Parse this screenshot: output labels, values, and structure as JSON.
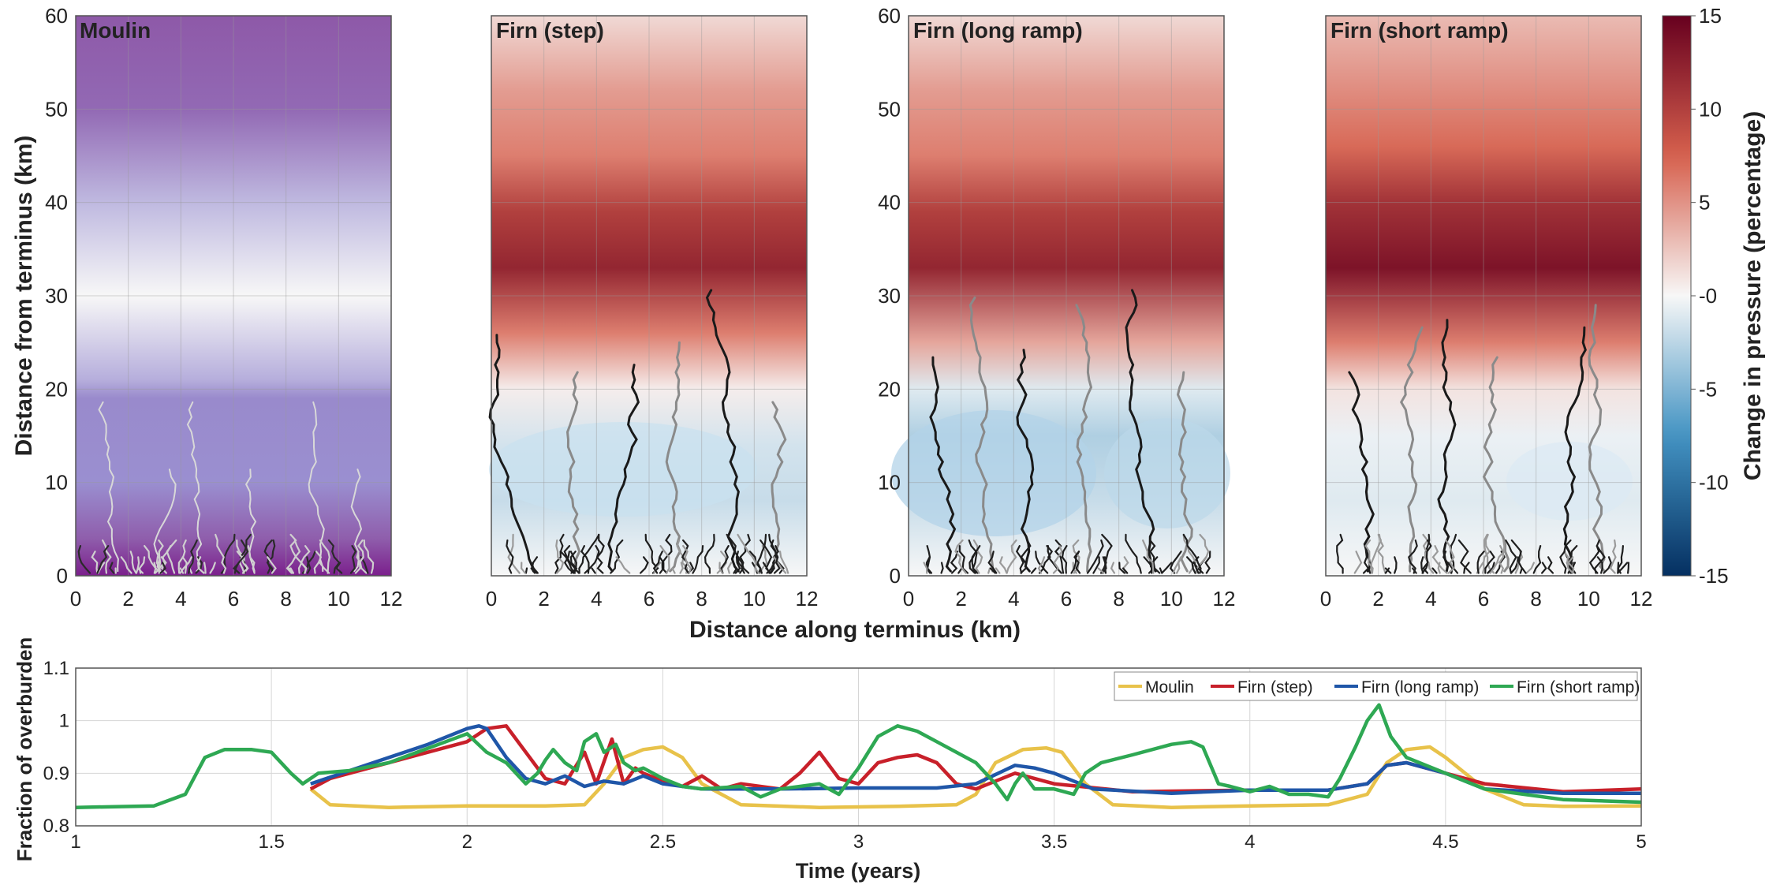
{
  "chart_data": [
    {
      "type": "heatmap",
      "title": "Moulin",
      "colormap": "purple-blue",
      "xlim": [
        0,
        12
      ],
      "ylim": [
        0,
        60
      ],
      "xticks": [
        "0",
        "2",
        "4",
        "6",
        "8",
        "10",
        "12"
      ],
      "yticks": [
        "0",
        "10",
        "20",
        "30",
        "40",
        "50",
        "60"
      ],
      "ylabel": "Distance from terminus (km)",
      "profile": [
        {
          "y": 0,
          "v": -1.0
        },
        {
          "y": 4,
          "v": -0.95
        },
        {
          "y": 10,
          "v": -0.5
        },
        {
          "y": 19,
          "v": -0.55
        },
        {
          "y": 21,
          "v": -0.35
        },
        {
          "y": 30,
          "v": 0.0
        },
        {
          "y": 40,
          "v": -0.3
        },
        {
          "y": 50,
          "v": -0.85
        },
        {
          "y": 60,
          "v": -1.0
        }
      ],
      "grid": true
    },
    {
      "type": "heatmap",
      "title": "Firn (step)",
      "xlim": [
        0,
        12
      ],
      "ylim": [
        0,
        60
      ],
      "xticks": [
        "0",
        "2",
        "4",
        "6",
        "8",
        "10",
        "12"
      ],
      "profile": [
        {
          "y": 0,
          "v": 0
        },
        {
          "y": 8,
          "v": -2
        },
        {
          "y": 14,
          "v": -1.5
        },
        {
          "y": 20,
          "v": 0.5
        },
        {
          "y": 26,
          "v": 6
        },
        {
          "y": 33,
          "v": 12
        },
        {
          "y": 39,
          "v": 10
        },
        {
          "y": 45,
          "v": 6
        },
        {
          "y": 52,
          "v": 4.5
        },
        {
          "y": 60,
          "v": 1.5
        }
      ],
      "grid": true
    },
    {
      "type": "heatmap",
      "title": "Firn (long ramp)",
      "xlim": [
        0,
        12
      ],
      "ylim": [
        0,
        60
      ],
      "xticks": [
        "0",
        "2",
        "4",
        "6",
        "8",
        "10",
        "12"
      ],
      "yticks": [
        "0",
        "10",
        "20",
        "30",
        "40",
        "50",
        "60"
      ],
      "profile": [
        {
          "y": 0,
          "v": 0
        },
        {
          "y": 8,
          "v": -2
        },
        {
          "y": 15,
          "v": -3
        },
        {
          "y": 20,
          "v": -1
        },
        {
          "y": 25,
          "v": 4
        },
        {
          "y": 33,
          "v": 12
        },
        {
          "y": 39,
          "v": 10
        },
        {
          "y": 45,
          "v": 6
        },
        {
          "y": 52,
          "v": 4.5
        },
        {
          "y": 60,
          "v": 1.5
        }
      ],
      "grid": true
    },
    {
      "type": "heatmap",
      "title": "Firn (short ramp)",
      "xlim": [
        0,
        12
      ],
      "ylim": [
        0,
        60
      ],
      "xticks": [
        "0",
        "2",
        "4",
        "6",
        "8",
        "10",
        "12"
      ],
      "profile": [
        {
          "y": 0,
          "v": 0
        },
        {
          "y": 8,
          "v": -1
        },
        {
          "y": 15,
          "v": -0.5
        },
        {
          "y": 20,
          "v": 1
        },
        {
          "y": 25,
          "v": 6
        },
        {
          "y": 33,
          "v": 13.5
        },
        {
          "y": 40,
          "v": 11
        },
        {
          "y": 46,
          "v": 7
        },
        {
          "y": 53,
          "v": 5
        },
        {
          "y": 60,
          "v": 3
        }
      ],
      "grid": true
    },
    {
      "type": "line",
      "xlabel": "Time (years)",
      "ylabel": "Fraction of overburden",
      "xlim": [
        1,
        5
      ],
      "ylim": [
        0.8,
        1.1
      ],
      "xticks": [
        "1",
        "1.5",
        "2",
        "2.5",
        "3",
        "3.5",
        "4",
        "4.5",
        "5"
      ],
      "yticks": [
        "0.8",
        "0.9",
        "1",
        "1.1"
      ],
      "legend": "top-right",
      "grid": true,
      "series": [
        {
          "name": "Moulin",
          "color": "#e8c24a",
          "x": [
            1.6,
            1.65,
            1.8,
            2.0,
            2.2,
            2.3,
            2.35,
            2.4,
            2.45,
            2.5,
            2.55,
            2.6,
            2.7,
            2.9,
            3.1,
            3.25,
            3.3,
            3.35,
            3.42,
            3.48,
            3.52,
            3.58,
            3.65,
            3.8,
            4.0,
            4.2,
            4.3,
            4.35,
            4.4,
            4.46,
            4.5,
            4.6,
            4.7,
            4.8,
            5.0
          ],
          "y": [
            0.87,
            0.84,
            0.835,
            0.838,
            0.838,
            0.84,
            0.88,
            0.93,
            0.945,
            0.95,
            0.93,
            0.88,
            0.84,
            0.835,
            0.837,
            0.84,
            0.86,
            0.92,
            0.945,
            0.948,
            0.94,
            0.88,
            0.84,
            0.835,
            0.838,
            0.84,
            0.86,
            0.92,
            0.945,
            0.95,
            0.93,
            0.87,
            0.84,
            0.837,
            0.838
          ]
        },
        {
          "name": "Firn (step)",
          "color": "#c8202a",
          "x": [
            1.6,
            1.65,
            1.8,
            2.0,
            2.05,
            2.1,
            2.15,
            2.2,
            2.25,
            2.3,
            2.33,
            2.37,
            2.4,
            2.43,
            2.45,
            2.5,
            2.55,
            2.6,
            2.65,
            2.7,
            2.8,
            2.85,
            2.9,
            2.95,
            3.0,
            3.05,
            3.1,
            3.15,
            3.2,
            3.25,
            3.3,
            3.4,
            3.5,
            3.7,
            4.0,
            4.2,
            4.3,
            4.35,
            4.4,
            4.45,
            4.5,
            4.6,
            4.8,
            5.0
          ],
          "y": [
            0.87,
            0.89,
            0.92,
            0.96,
            0.985,
            0.99,
            0.94,
            0.89,
            0.88,
            0.94,
            0.88,
            0.965,
            0.88,
            0.91,
            0.9,
            0.885,
            0.875,
            0.895,
            0.87,
            0.88,
            0.87,
            0.9,
            0.94,
            0.89,
            0.88,
            0.92,
            0.93,
            0.935,
            0.92,
            0.88,
            0.87,
            0.9,
            0.88,
            0.865,
            0.868,
            0.868,
            0.88,
            0.915,
            0.92,
            0.91,
            0.9,
            0.88,
            0.865,
            0.87
          ]
        },
        {
          "name": "Firn (long ramp)",
          "color": "#1f56a8",
          "x": [
            1.6,
            1.7,
            1.9,
            2.0,
            2.03,
            2.05,
            2.1,
            2.15,
            2.2,
            2.25,
            2.3,
            2.35,
            2.4,
            2.45,
            2.5,
            2.6,
            2.8,
            3.0,
            3.2,
            3.3,
            3.4,
            3.45,
            3.5,
            3.6,
            3.8,
            4.0,
            4.2,
            4.3,
            4.35,
            4.4,
            4.5,
            4.6,
            4.8,
            5.0
          ],
          "y": [
            0.88,
            0.905,
            0.955,
            0.985,
            0.99,
            0.985,
            0.93,
            0.89,
            0.88,
            0.895,
            0.875,
            0.885,
            0.88,
            0.895,
            0.88,
            0.87,
            0.87,
            0.872,
            0.872,
            0.88,
            0.915,
            0.91,
            0.9,
            0.87,
            0.862,
            0.868,
            0.868,
            0.88,
            0.915,
            0.92,
            0.9,
            0.87,
            0.862,
            0.862
          ]
        },
        {
          "name": "Firn (short ramp)",
          "color": "#2ea853",
          "x": [
            1.0,
            1.2,
            1.28,
            1.33,
            1.38,
            1.45,
            1.5,
            1.55,
            1.58,
            1.62,
            1.7,
            1.8,
            2.0,
            2.05,
            2.1,
            2.15,
            2.18,
            2.2,
            2.22,
            2.25,
            2.28,
            2.3,
            2.33,
            2.35,
            2.38,
            2.4,
            2.43,
            2.45,
            2.5,
            2.55,
            2.6,
            2.7,
            2.75,
            2.8,
            2.9,
            2.95,
            3.0,
            3.05,
            3.1,
            3.15,
            3.2,
            3.3,
            3.35,
            3.38,
            3.4,
            3.42,
            3.45,
            3.5,
            3.55,
            3.58,
            3.62,
            3.7,
            3.8,
            3.85,
            3.88,
            3.92,
            3.95,
            4.0,
            4.05,
            4.1,
            4.15,
            4.2,
            4.23,
            4.27,
            4.3,
            4.33,
            4.36,
            4.4,
            4.45,
            4.5,
            4.6,
            4.8,
            5.0
          ],
          "y": [
            0.835,
            0.838,
            0.86,
            0.93,
            0.945,
            0.945,
            0.94,
            0.9,
            0.88,
            0.9,
            0.905,
            0.92,
            0.975,
            0.94,
            0.92,
            0.88,
            0.9,
            0.925,
            0.945,
            0.92,
            0.905,
            0.96,
            0.975,
            0.94,
            0.955,
            0.92,
            0.905,
            0.91,
            0.89,
            0.875,
            0.87,
            0.875,
            0.855,
            0.87,
            0.88,
            0.86,
            0.91,
            0.97,
            0.99,
            0.98,
            0.96,
            0.92,
            0.88,
            0.85,
            0.88,
            0.9,
            0.87,
            0.87,
            0.86,
            0.9,
            0.92,
            0.935,
            0.955,
            0.96,
            0.95,
            0.88,
            0.875,
            0.865,
            0.875,
            0.86,
            0.86,
            0.855,
            0.89,
            0.95,
            1.0,
            1.03,
            0.97,
            0.93,
            0.915,
            0.9,
            0.87,
            0.85,
            0.845
          ]
        }
      ]
    }
  ],
  "shared": {
    "xlabel": "Distance along terminus (km)",
    "colorbar": {
      "label": "Change in pressure (percentage)",
      "ticks": [
        "15",
        "10",
        "5",
        "-0",
        "-5",
        "-10",
        "-15"
      ],
      "range": [
        -15,
        15
      ]
    }
  },
  "colors": {
    "red_dark": "#67001f",
    "red": "#d6604d",
    "white": "#f7f7f7",
    "blue": "#4393c3",
    "blue_dark": "#053061",
    "purple_dark": "#7b1f8c",
    "purple": "#8e59a8",
    "lavender": "#9a8fd0"
  }
}
